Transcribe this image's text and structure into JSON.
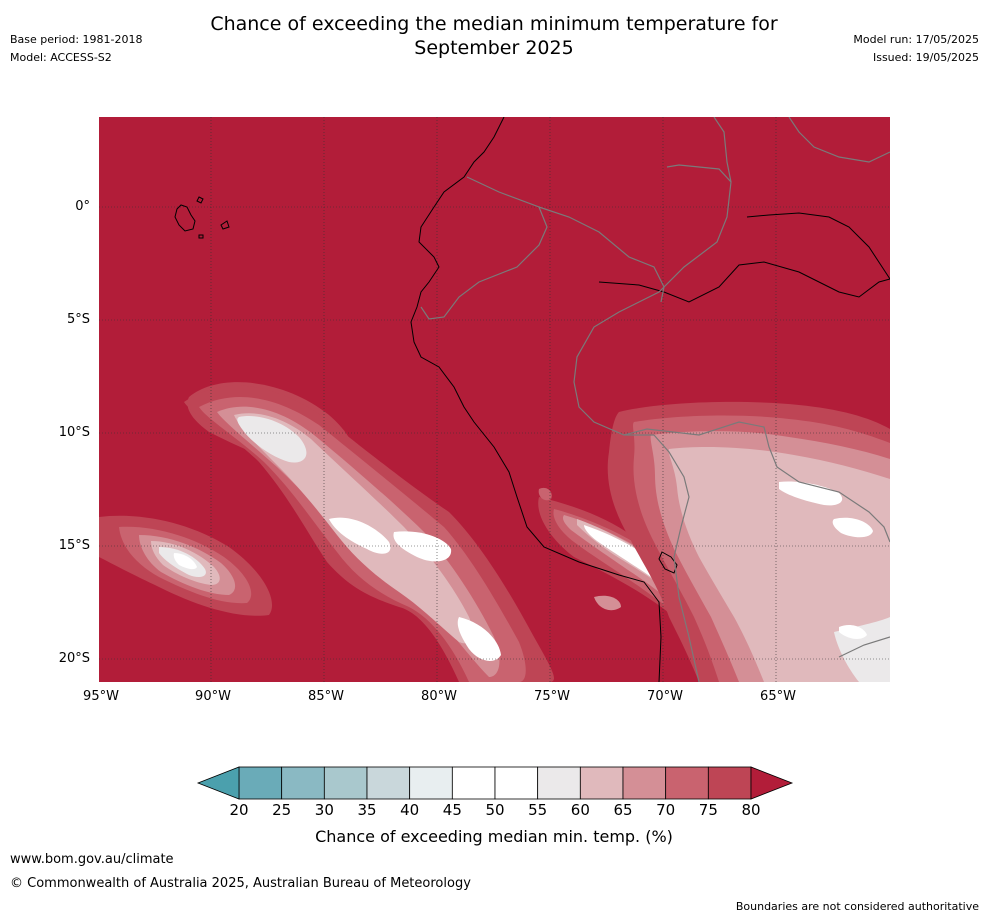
{
  "header": {
    "title_line1": "Chance of exceeding the median minimum temperature for",
    "title_line2": "September 2025",
    "base_period": "Base period: 1981-2018",
    "model": "Model: ACCESS-S2",
    "model_run": "Model run: 17/05/2025",
    "issued": "Issued: 19/05/2025"
  },
  "map": {
    "lat_labels": [
      "0°",
      "5°S",
      "10°S",
      "15°S",
      "20°S"
    ],
    "lon_labels": [
      "95°W",
      "90°W",
      "85°W",
      "80°W",
      "75°W",
      "70°W",
      "65°W"
    ],
    "colors": {
      "ocean_high": "#b21d39",
      "c75": "#be4555",
      "c70": "#c9636f",
      "c65": "#d48f96",
      "c60": "#e0b9bc",
      "c55": "#ebe9ea",
      "c50": "#ffffff",
      "coast": "#000000",
      "border": "#7a7a7a",
      "grid": "#333333"
    }
  },
  "colorbar": {
    "ticks": [
      "20",
      "25",
      "30",
      "35",
      "40",
      "45",
      "50",
      "55",
      "60",
      "65",
      "70",
      "75",
      "80"
    ],
    "colors": [
      "#6aabb8",
      "#8ab9c3",
      "#a9c8cd",
      "#c9d7db",
      "#e8eef0",
      "#ffffff",
      "#ffffff",
      "#ebe9ea",
      "#e0b9bc",
      "#d48f96",
      "#c9636f",
      "#be4555"
    ],
    "low_arrow_color": "#4ba0ad",
    "high_arrow_color": "#b21d39",
    "label": "Chance of exceeding median min. temp. (%)"
  },
  "footer": {
    "url": "www.bom.gov.au/climate",
    "copyright": "© Commonwealth of Australia 2025, Australian Bureau of Meteorology",
    "disclaimer": "Boundaries are not considered authoritative"
  }
}
